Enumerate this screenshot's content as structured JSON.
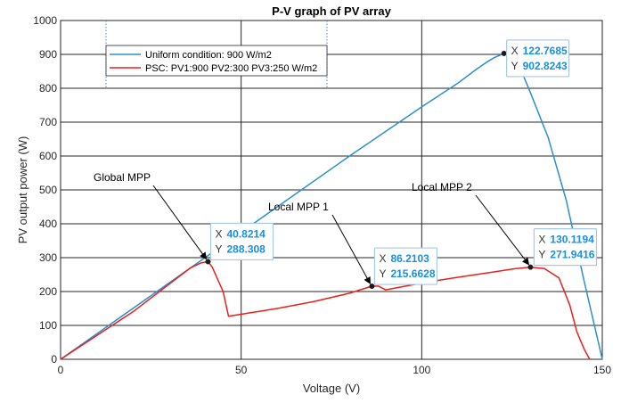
{
  "chart_data": {
    "type": "line",
    "title": "P-V graph of PV array",
    "xlabel": "Voltage (V)",
    "ylabel": "PV output power (W)",
    "xlim": [
      0,
      150
    ],
    "ylim": [
      0,
      1000
    ],
    "xticks": [
      "0",
      "50",
      "100",
      "150"
    ],
    "yticks": [
      "0",
      "100",
      "200",
      "300",
      "400",
      "500",
      "600",
      "700",
      "800",
      "900",
      "1000"
    ],
    "grid": true,
    "legend_position": "top-left",
    "series": [
      {
        "name": "Uniform condition: 900 W/m2",
        "color": "#2a8fd0",
        "x": [
          0,
          20,
          40,
          60,
          80,
          100,
          110,
          115,
          118,
          120,
          122.7685,
          126,
          130,
          135,
          140,
          145,
          150
        ],
        "y": [
          0,
          150,
          300,
          450,
          600,
          745,
          815,
          855,
          877,
          890,
          902.8243,
          892,
          790,
          655,
          470,
          230,
          0
        ]
      },
      {
        "name": "PSC: PV1:900 PV2:300 PV3:250 W/m2",
        "color": "#e8201c",
        "x": [
          0,
          20,
          36,
          39,
          40.8214,
          42,
          45,
          46.5,
          60,
          70,
          80,
          86.2103,
          88,
          90,
          100,
          110,
          120,
          126,
          130.1194,
          134,
          138,
          141,
          143,
          145,
          146.5
        ],
        "y": [
          0,
          140,
          270,
          285,
          288.308,
          272,
          200,
          127,
          150,
          170,
          195,
          215.6628,
          216,
          205,
          225,
          242,
          258,
          268,
          271.9416,
          268,
          240,
          160,
          80,
          30,
          0
        ]
      }
    ],
    "markers": [
      {
        "x": 40.8214,
        "y": 288.308,
        "x_text": "40.8214",
        "y_text": "288.308"
      },
      {
        "x": 86.2103,
        "y": 215.6628,
        "x_text": "86.2103",
        "y_text": "215.6628"
      },
      {
        "x": 130.1194,
        "y": 271.9416,
        "x_text": "130.1194",
        "y_text": "271.9416"
      },
      {
        "x": 122.7685,
        "y": 902.8243,
        "x_text": "122.7685",
        "y_text": "902.8243"
      }
    ],
    "datatip_x_label": "X",
    "datatip_y_label": "Y",
    "annotations": [
      {
        "text": "Global MPP",
        "target": 0
      },
      {
        "text": "Local MPP 1",
        "target": 1
      },
      {
        "text": "Local MPP 2",
        "target": 2
      }
    ]
  }
}
